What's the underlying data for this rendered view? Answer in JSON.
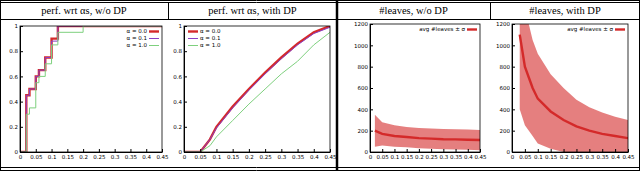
{
  "chart_data": [
    {
      "type": "line",
      "title": "perf. wrt αs, w/o DP",
      "x": [
        0,
        0.02,
        0.03,
        0.05,
        0.06,
        0.08,
        0.1,
        0.12,
        0.2,
        0.45
      ],
      "series": [
        {
          "name": "α = 0.0",
          "color": "#d42a2a",
          "line_style": "step",
          "values": [
            0,
            0.45,
            0.5,
            0.6,
            0.65,
            0.75,
            0.9,
            1,
            1,
            1
          ]
        },
        {
          "name": "α = 0.1",
          "color": "#8a3fc4",
          "line_style": "step",
          "values": [
            0,
            0.45,
            0.5,
            0.6,
            0.65,
            0.75,
            0.88,
            1,
            1,
            1
          ]
        },
        {
          "name": "α = 1.0",
          "color": "#7ed07e",
          "line_style": "step",
          "values": [
            0,
            0.3,
            0.35,
            0.55,
            0.6,
            0.7,
            0.85,
            0.95,
            1,
            1
          ]
        }
      ],
      "xlim": [
        0,
        0.45
      ],
      "ylim": [
        0,
        1
      ],
      "xticks": [
        0,
        0.05,
        0.1,
        0.15,
        0.2,
        0.25,
        0.3,
        0.35,
        0.4,
        0.45
      ],
      "yticks": [
        0,
        0.2,
        0.4,
        0.6,
        0.8,
        1
      ],
      "legend": "upper right"
    },
    {
      "type": "line",
      "title": "perf. wrt αs, with DP",
      "x": [
        0,
        0.05,
        0.08,
        0.1,
        0.15,
        0.2,
        0.25,
        0.3,
        0.35,
        0.4,
        0.45
      ],
      "series": [
        {
          "name": "α = 0.0",
          "color": "#d42a2a",
          "line_style": "solid",
          "values": [
            0,
            0,
            0.1,
            0.2,
            0.36,
            0.5,
            0.63,
            0.75,
            0.86,
            0.95,
            1
          ]
        },
        {
          "name": "α = 0.1",
          "color": "#8a3fc4",
          "line_style": "solid",
          "values": [
            0,
            0,
            0.1,
            0.19,
            0.35,
            0.49,
            0.62,
            0.74,
            0.85,
            0.94,
            0.99
          ]
        },
        {
          "name": "α = 1.0",
          "color": "#7ed07e",
          "line_style": "solid",
          "values": [
            0,
            0,
            0.05,
            0.12,
            0.25,
            0.38,
            0.5,
            0.62,
            0.72,
            0.85,
            0.95
          ]
        }
      ],
      "xlim": [
        0,
        0.45
      ],
      "ylim": [
        0,
        1
      ],
      "xticks": [
        0,
        0.05,
        0.1,
        0.15,
        0.2,
        0.25,
        0.3,
        0.35,
        0.4,
        0.45
      ],
      "yticks": [
        0,
        0.2,
        0.4,
        0.6,
        0.8,
        1
      ],
      "legend": "upper left"
    },
    {
      "type": "line",
      "title": "#leaves, w/o DP",
      "x": [
        0.02,
        0.05,
        0.1,
        0.15,
        0.2,
        0.25,
        0.3,
        0.35,
        0.4,
        0.45
      ],
      "series": [
        {
          "name": "avg #leaves ± σ",
          "color": "#d42a2a",
          "line_style": "solid",
          "values": [
            200,
            170,
            150,
            140,
            130,
            125,
            120,
            118,
            115,
            112
          ],
          "error": [
            150,
            110,
            100,
            95,
            95,
            95,
            95,
            95,
            95,
            95
          ]
        }
      ],
      "xlim": [
        0,
        0.45
      ],
      "ylim": [
        0,
        1200
      ],
      "xticks": [
        0,
        0.05,
        0.1,
        0.15,
        0.2,
        0.25,
        0.3,
        0.35,
        0.4,
        0.45
      ],
      "yticks": [
        0,
        200,
        400,
        600,
        800,
        1000,
        1200
      ],
      "legend": "upper right"
    },
    {
      "type": "line",
      "title": "#leaves, with DP",
      "x": [
        0.03,
        0.05,
        0.08,
        0.1,
        0.15,
        0.2,
        0.25,
        0.3,
        0.35,
        0.4,
        0.45
      ],
      "series": [
        {
          "name": "avg #leaves ± σ",
          "color": "#d42a2a",
          "line_style": "solid",
          "values": [
            1100,
            800,
            600,
            500,
            380,
            300,
            240,
            200,
            170,
            150,
            130
          ],
          "error": [
            700,
            550,
            450,
            420,
            350,
            300,
            250,
            220,
            200,
            180,
            170
          ]
        }
      ],
      "xlim": [
        0,
        0.45
      ],
      "ylim": [
        0,
        1200
      ],
      "xticks": [
        0,
        0.05,
        0.1,
        0.15,
        0.2,
        0.25,
        0.3,
        0.35,
        0.4,
        0.45
      ],
      "yticks": [
        0,
        200,
        400,
        600,
        800,
        1000,
        1200
      ],
      "legend": "upper right"
    }
  ]
}
